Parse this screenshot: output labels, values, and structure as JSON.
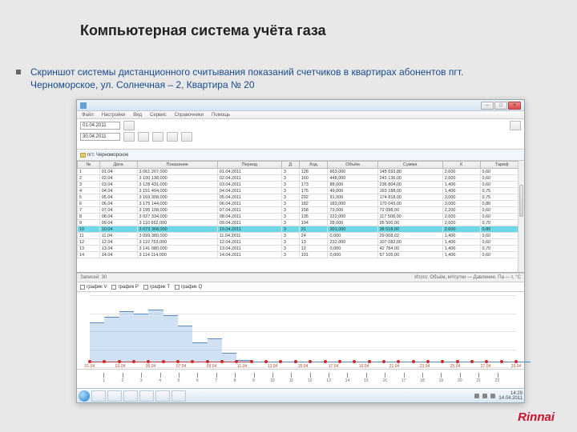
{
  "slide": {
    "title": "Компьютерная система учёта газа",
    "bullet": "Скриншот системы дистанционного считывания показаний счетчиков в квартирах абонентов пгт. Черноморское, ул. Солнечная – 2, Квартира № 20",
    "logo": "Rinnai"
  },
  "window": {
    "title": " ",
    "menu": [
      "Файл",
      "Настройки",
      "Вид",
      "Сервис",
      "Справочники",
      "Помощь"
    ],
    "date_from": "01.04.2011",
    "date_to": "30.04.2011",
    "tree_label": "пгт. Черноморское",
    "columns": [
      "№",
      "Дата",
      "Показание",
      "Период",
      "Д",
      "Код",
      "Объём",
      "Сумма",
      "К",
      "Тариф"
    ],
    "rows": [
      {
        "n": "1",
        "d": "01.04",
        "v": "3 061 207,000",
        "p": "01.04.2011",
        "a": "3",
        "b": "128",
        "c": "663,000",
        "s": "145 693,80",
        "k": "2,600",
        "t": "0,60"
      },
      {
        "n": "2",
        "d": "02.04",
        "v": "3 100 138,000",
        "p": "02.04.2011",
        "a": "3",
        "b": "160",
        "c": "448,000",
        "s": "243 136,00",
        "k": "2,600",
        "t": "0,60"
      },
      {
        "n": "3",
        "d": "03.04",
        "v": "3 128 431,000",
        "p": "03.04.2011",
        "a": "3",
        "b": "173",
        "c": "88,000",
        "s": "236 804,00",
        "k": "1,400",
        "t": "0,60"
      },
      {
        "n": "4",
        "d": "04.04",
        "v": "3 151 494,000",
        "p": "04.04.2011",
        "a": "3",
        "b": "175",
        "c": "49,000",
        "s": "163 188,00",
        "k": "1,400",
        "t": "0,75"
      },
      {
        "n": "5",
        "d": "05.04",
        "v": "3 169 308,000",
        "p": "05.04.2011",
        "a": "3",
        "b": "202",
        "c": "91,000",
        "s": "174 818,00",
        "k": "3,000",
        "t": "0,75"
      },
      {
        "n": "6",
        "d": "06.04",
        "v": "3 175 144,000",
        "p": "06.04.2011",
        "a": "3",
        "b": "182",
        "c": "183,000",
        "s": "170 043,00",
        "k": "3,000",
        "t": "0,80"
      },
      {
        "n": "7",
        "d": "07.04",
        "v": "3 195 108,000",
        "p": "07.04.2011",
        "a": "3",
        "b": "158",
        "c": "73,000",
        "s": "72 098,00",
        "k": "2,200",
        "t": "0,60"
      },
      {
        "n": "8",
        "d": "08.04",
        "v": "3 027 334,000",
        "p": "08.04.2011",
        "a": "3",
        "b": "135",
        "c": "222,000",
        "s": "117 508,00",
        "k": "2,600",
        "t": "0,60"
      },
      {
        "n": "9",
        "d": "09.04",
        "v": "3 110 662,000",
        "p": "09.04.2011",
        "a": "3",
        "b": "104",
        "c": "28,000",
        "s": "95 500,00",
        "k": "2,600",
        "t": "0,70"
      },
      {
        "n": "10",
        "d": "10.04",
        "v": "3 073 368,000",
        "p": "10.04.2011",
        "a": "3",
        "b": "31",
        "c": "301,000",
        "s": "36 518,00",
        "k": "2,600",
        "t": "0,80",
        "sel": true
      },
      {
        "n": "11",
        "d": "11.04",
        "v": "3 099 380,000",
        "p": "11.04.2011",
        "a": "3",
        "b": "24",
        "c": "0,000",
        "s": "29 008,02",
        "k": "1,400",
        "t": "0,60"
      },
      {
        "n": "12",
        "d": "12.04",
        "v": "3 110 753,000",
        "p": "12.04.2011",
        "a": "3",
        "b": "13",
        "c": "232,000",
        "s": "107 082,00",
        "k": "1,400",
        "t": "0,60"
      },
      {
        "n": "13",
        "d": "13.04",
        "v": "3 141 080,000",
        "p": "13.04.2011",
        "a": "3",
        "b": "12",
        "c": "0,000",
        "s": "42 784,00",
        "k": "1,400",
        "t": "0,70"
      },
      {
        "n": "14",
        "d": "14.04",
        "v": "3 114 114,000",
        "p": "14.04.2011",
        "a": "3",
        "b": "101",
        "c": "0,000",
        "s": "57 105,00",
        "k": "1,400",
        "t": "0,60"
      }
    ],
    "status_left": "Записей: 30",
    "status_right": "Итого: Объём, м³/сутки — Давление, Па — t, °C",
    "checkboxes": [
      "график V",
      "график P",
      "график T",
      "график Q"
    ],
    "chart": {
      "background": "#ffffff",
      "grid_color": "#e4e4e4",
      "area_color": "rgba(120,170,220,.35)",
      "line_color": "#5a8ac0",
      "point_color": "#d02828",
      "baseline_color": "#c04040",
      "x_labels": [
        "01.04",
        "03.04",
        "05.04",
        "07.04",
        "09.04",
        "11.04",
        "13.04",
        "15.04",
        "17.04",
        "19.04",
        "21.04",
        "23.04",
        "25.04",
        "27.04",
        "29.04"
      ],
      "y_values": [
        62,
        70,
        78,
        74,
        80,
        72,
        58,
        34,
        40,
        20,
        10,
        8,
        8,
        8,
        8,
        8,
        8,
        8,
        8,
        8,
        8,
        8,
        8,
        8,
        8,
        8,
        8,
        8,
        8,
        8
      ],
      "ymax": 100
    },
    "ruler_labels": [
      "1",
      "2",
      "3",
      "4",
      "5",
      "6",
      "7",
      "8",
      "9",
      "10",
      "11",
      "12",
      "13",
      "14",
      "15",
      "16",
      "17",
      "18",
      "19",
      "20",
      "21",
      "22"
    ]
  },
  "taskbar": {
    "time": "14:29",
    "date": "14.04.2011"
  }
}
